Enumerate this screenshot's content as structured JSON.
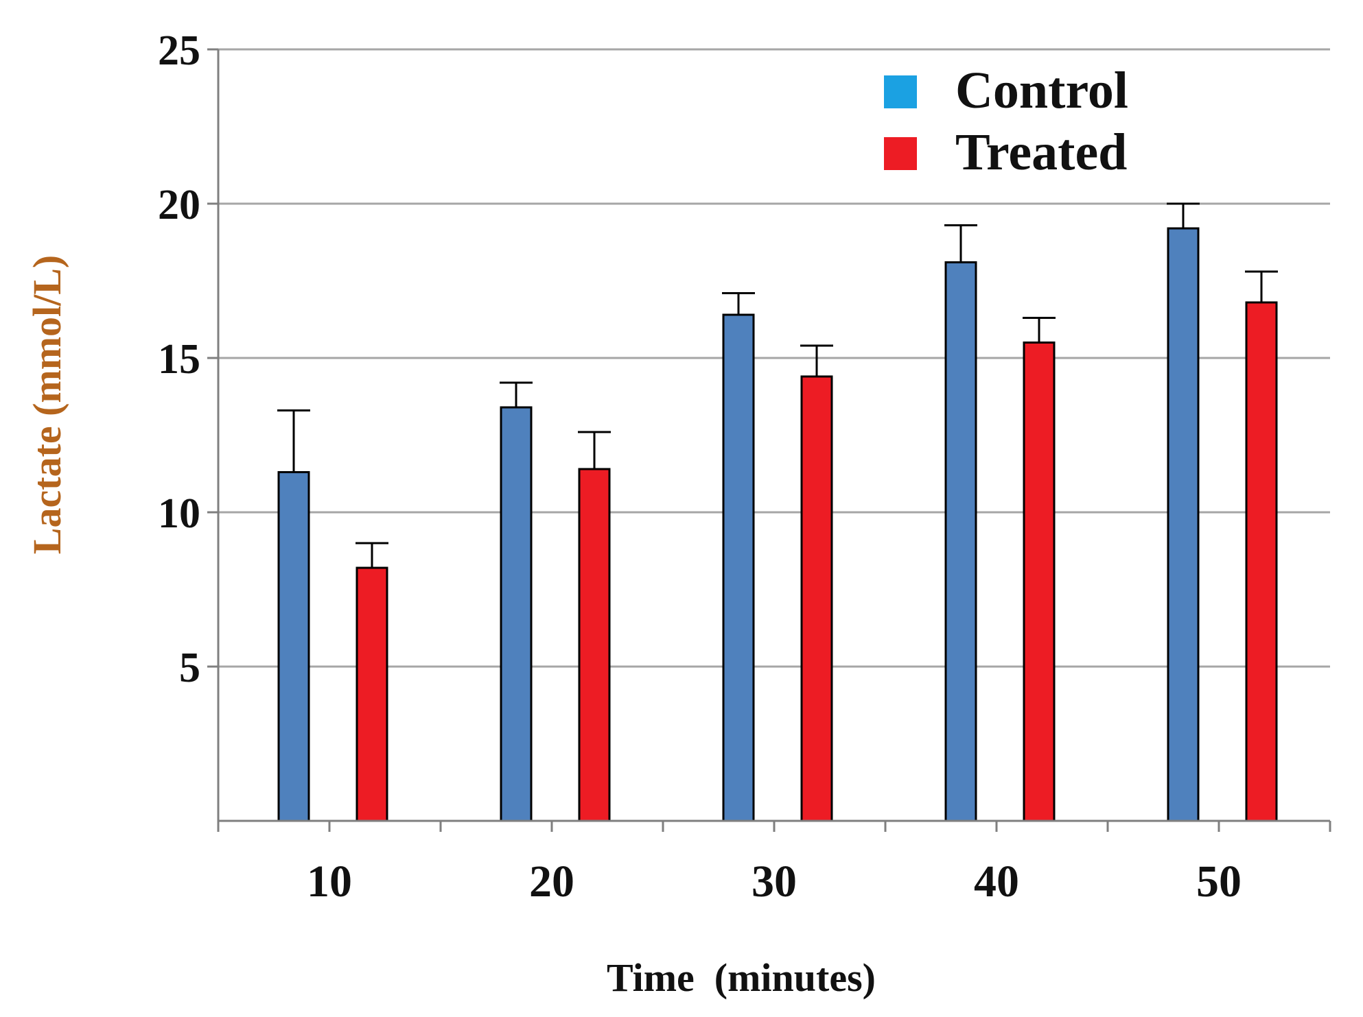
{
  "chart_data": {
    "type": "bar",
    "title": "",
    "xlabel": "Time  (minutes)",
    "ylabel": "Lactate (mmol/L)",
    "ylim": [
      0,
      25
    ],
    "yticks": [
      5,
      10,
      15,
      20,
      25
    ],
    "grid": true,
    "legend_position": "top-right",
    "categories": [
      "10",
      "20",
      "30",
      "40",
      "50"
    ],
    "series": [
      {
        "name": "Control",
        "color": "#4f81bd",
        "legend_color": "#1ba1e2",
        "values": [
          11.3,
          13.4,
          16.4,
          18.1,
          19.2
        ],
        "errors": [
          2.0,
          0.8,
          0.7,
          1.2,
          0.8
        ]
      },
      {
        "name": "Treated",
        "color": "#ed1c24",
        "legend_color": "#ed1c24",
        "values": [
          8.2,
          11.4,
          14.4,
          15.5,
          16.8
        ],
        "errors": [
          0.8,
          1.2,
          1.0,
          0.8,
          1.0
        ]
      }
    ],
    "colors": {
      "grid": "#a6a6a6",
      "axis": "#7f7f7f",
      "ylabel": "#b5651d",
      "xlabel": "#111111"
    }
  }
}
